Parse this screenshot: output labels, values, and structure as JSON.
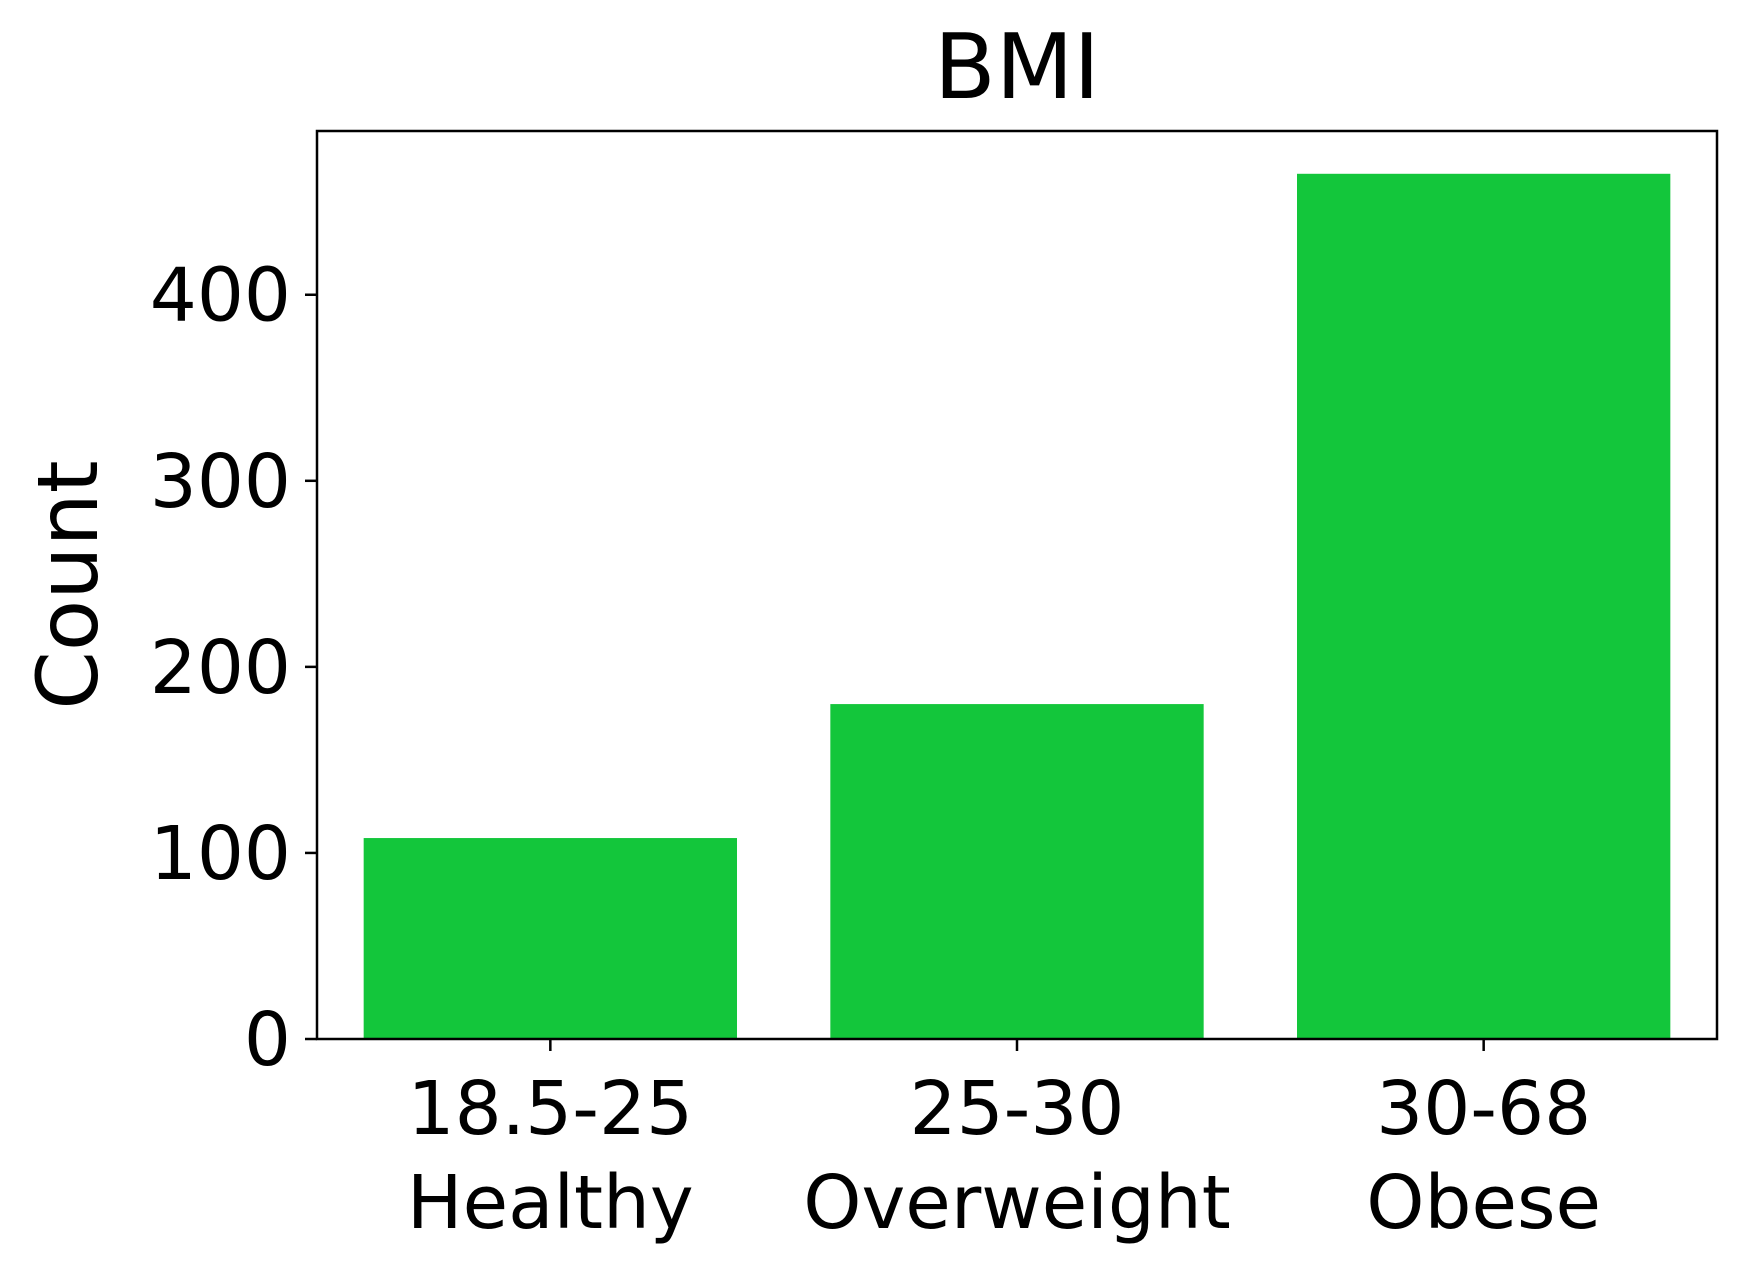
{
  "chart_data": {
    "type": "bar",
    "title": "BMI",
    "xlabel": "",
    "ylabel": "Count",
    "categories": [
      {
        "range": "18.5-25",
        "label": "Healthy"
      },
      {
        "range": "25-30",
        "label": "Overweight"
      },
      {
        "range": "30-68",
        "label": "Obese"
      }
    ],
    "values": [
      108,
      180,
      465
    ],
    "ylim": [
      0,
      488
    ],
    "yticks": [
      0,
      100,
      200,
      300,
      400
    ],
    "bar_color": "#13c63b",
    "grid": false,
    "legend": "none"
  }
}
